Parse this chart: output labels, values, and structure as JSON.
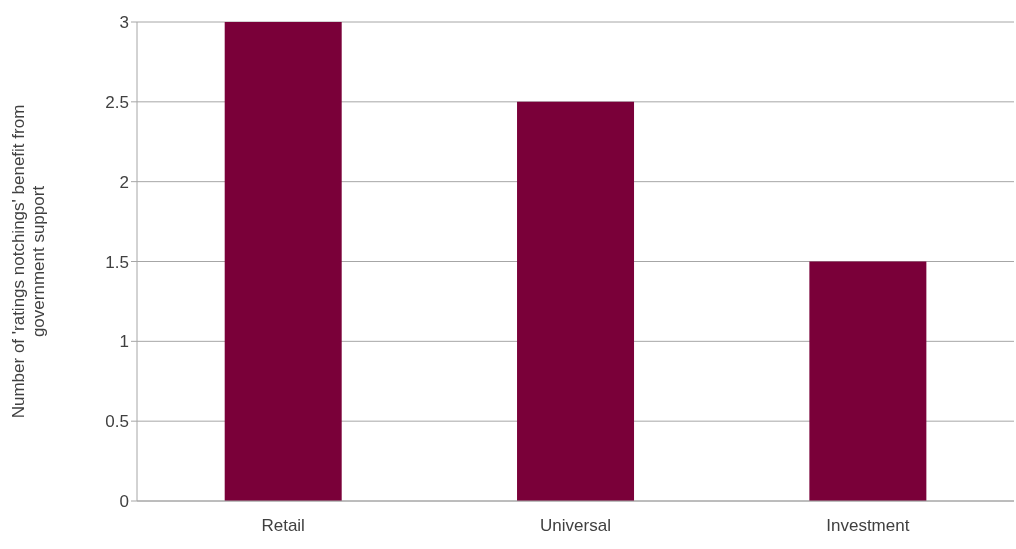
{
  "chart_data": {
    "type": "bar",
    "ylabel": "Number of 'ratings notchings' benefit from government support",
    "categories": [
      "Retail",
      "Universal",
      "Investment"
    ],
    "values": [
      3,
      2.5,
      1.5
    ],
    "color": "#7a0039",
    "ylim": [
      0,
      3
    ],
    "yticks": [
      0,
      0.5,
      1,
      1.5,
      2,
      2.5,
      3
    ],
    "grid": "y"
  }
}
